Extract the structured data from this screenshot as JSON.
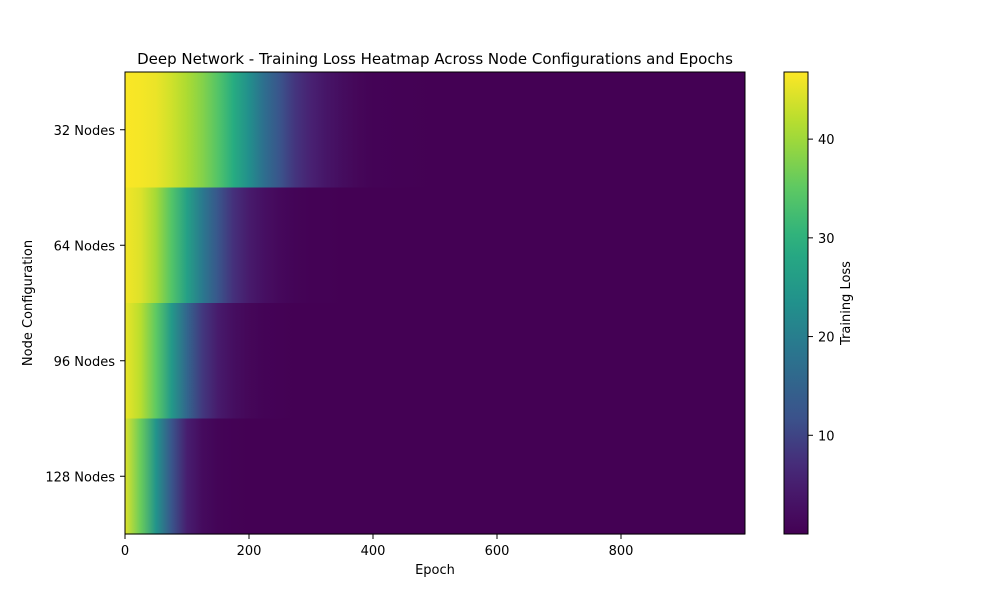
{
  "chart_data": {
    "type": "heatmap",
    "title": "Deep Network - Training Loss Heatmap Across Node Configurations and Epochs",
    "xlabel": "Epoch",
    "ylabel": "Node Configuration",
    "rows": [
      "32 Nodes",
      "64 Nodes",
      "96 Nodes",
      "128 Nodes"
    ],
    "x_ticks": [
      0,
      200,
      400,
      600,
      800
    ],
    "xlim": [
      0,
      1000
    ],
    "epochs_sampled": [
      0,
      25,
      50,
      75,
      100,
      125,
      150,
      175,
      200,
      225,
      250,
      275,
      300,
      325,
      350,
      375,
      400,
      450,
      500,
      600,
      700,
      800,
      900,
      999
    ],
    "series": [
      {
        "name": "32 Nodes",
        "values": [
          46.6,
          46.2,
          45.5,
          43.5,
          41.0,
          38.0,
          34.0,
          29.0,
          23.0,
          17.0,
          12.0,
          8.0,
          5.5,
          3.5,
          2.0,
          1.0,
          0.4,
          0.1,
          0.0,
          0.0,
          0.0,
          0.0,
          0.0,
          0.0
        ]
      },
      {
        "name": "64 Nodes",
        "values": [
          46.0,
          44.5,
          40.5,
          34.0,
          26.5,
          19.0,
          12.5,
          7.5,
          4.5,
          2.5,
          1.3,
          0.6,
          0.2,
          0.1,
          0.0,
          0.0,
          0.0,
          0.0,
          0.0,
          0.0,
          0.0,
          0.0,
          0.0,
          0.0
        ]
      },
      {
        "name": "96 Nodes",
        "values": [
          45.5,
          42.0,
          35.0,
          25.0,
          15.5,
          8.5,
          4.5,
          2.2,
          1.0,
          0.4,
          0.1,
          0.0,
          0.0,
          0.0,
          0.0,
          0.0,
          0.0,
          0.0,
          0.0,
          0.0,
          0.0,
          0.0,
          0.0,
          0.0
        ]
      },
      {
        "name": "128 Nodes",
        "values": [
          44.5,
          36.0,
          24.0,
          12.5,
          5.0,
          1.8,
          0.6,
          0.2,
          0.0,
          0.0,
          0.0,
          0.0,
          0.0,
          0.0,
          0.0,
          0.0,
          0.0,
          0.0,
          0.0,
          0.0,
          0.0,
          0.0,
          0.0,
          0.0
        ]
      }
    ],
    "colorbar": {
      "label": "Training Loss",
      "range": [
        0,
        46.8
      ],
      "ticks": [
        10,
        20,
        30,
        40
      ],
      "colormap": "viridis"
    },
    "grid": false
  }
}
